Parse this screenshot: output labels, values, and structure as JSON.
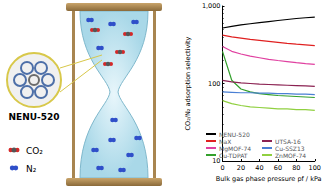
{
  "chart_data": {
    "type": "line",
    "x_label": "Bulk gas phase pressure pf / kPa",
    "y_label": "CO₂/N₂ adsorption selectivity",
    "x": [
      0,
      10,
      20,
      30,
      40,
      50,
      60,
      70,
      80,
      90,
      100
    ],
    "series": [
      {
        "name": "NENU-520",
        "color": "#000000",
        "values": [
          520,
          545,
          570,
          590,
          610,
          630,
          650,
          670,
          690,
          705,
          720
        ]
      },
      {
        "name": "NaX",
        "color": "#e02020",
        "values": [
          420,
          400,
          385,
          370,
          360,
          350,
          340,
          330,
          322,
          315,
          308
        ]
      },
      {
        "name": "MgMOF-74",
        "color": "#e040a0",
        "values": [
          300,
          260,
          240,
          225,
          215,
          205,
          198,
          192,
          186,
          181,
          177
        ]
      },
      {
        "name": "Cu-TDPAT",
        "color": "#33a02c",
        "values": [
          260,
          110,
          85,
          78,
          74,
          72,
          70,
          69,
          68,
          67,
          66
        ]
      },
      {
        "name": "UTSA-16",
        "color": "#8b2252",
        "values": [
          110,
          105,
          102,
          100,
          98,
          97,
          96,
          95,
          94,
          93,
          92
        ]
      },
      {
        "name": "Cu-SSZ13",
        "color": "#4a7fd4",
        "values": [
          78,
          77,
          76,
          76,
          75,
          75,
          74,
          74,
          73,
          73,
          72
        ]
      },
      {
        "name": "ZnMOF-74",
        "color": "#90d040",
        "values": [
          60,
          55,
          52,
          50,
          49,
          48,
          47,
          47,
          46,
          46,
          45
        ]
      }
    ],
    "xlim": [
      0,
      100
    ],
    "xticks": [
      0,
      20,
      40,
      60,
      80,
      100
    ],
    "ylim": [
      10,
      1000
    ],
    "yticks": [
      10,
      100,
      1000
    ],
    "log": "y",
    "legend": "bottom",
    "grid": false
  },
  "illustration": {
    "crystal_label": "NENU-520",
    "molecules": [
      {
        "name": "CO₂"
      },
      {
        "name": "N₂"
      }
    ]
  }
}
